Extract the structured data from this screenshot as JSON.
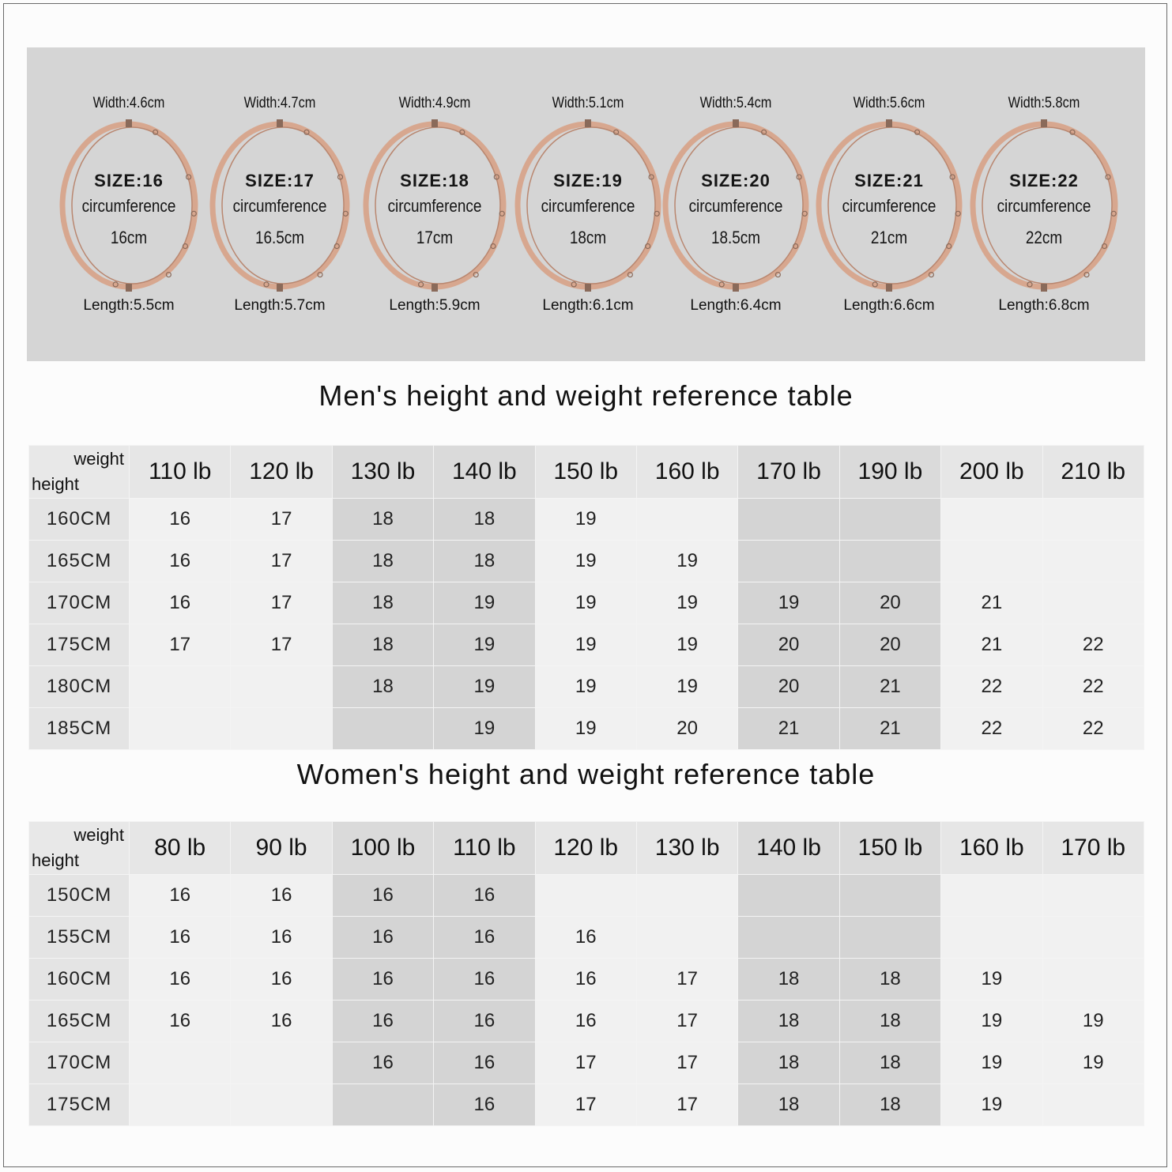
{
  "bangles": [
    {
      "width": "Width:4.6cm",
      "size": "SIZE:16",
      "circ_label": "circumference",
      "circ": "16cm",
      "length": "Length:5.5cm"
    },
    {
      "width": "Width:4.7cm",
      "size": "SIZE:17",
      "circ_label": "circumference",
      "circ": "16.5cm",
      "length": "Length:5.7cm"
    },
    {
      "width": "Width:4.9cm",
      "size": "SIZE:18",
      "circ_label": "circumference",
      "circ": "17cm",
      "length": "Length:5.9cm"
    },
    {
      "width": "Width:5.1cm",
      "size": "SIZE:19",
      "circ_label": "circumference",
      "circ": "18cm",
      "length": "Length:6.1cm"
    },
    {
      "width": "Width:5.4cm",
      "size": "SIZE:20",
      "circ_label": "circumference",
      "circ": "18.5cm",
      "length": "Length:6.4cm"
    },
    {
      "width": "Width:5.6cm",
      "size": "SIZE:21",
      "circ_label": "circumference",
      "circ": "21cm",
      "length": "Length:6.6cm"
    },
    {
      "width": "Width:5.8cm",
      "size": "SIZE:22",
      "circ_label": "circumference",
      "circ": "22cm",
      "length": "Length:6.8cm"
    }
  ],
  "men": {
    "title": "Men's height and weight reference table",
    "corner_weight": "weight",
    "corner_height": "height",
    "weights": [
      "110 lb",
      "120 lb",
      "130 lb",
      "140 lb",
      "150 lb",
      "160 lb",
      "170 lb",
      "190 lb",
      "200 lb",
      "210 lb"
    ],
    "rows": [
      {
        "height": "160CM",
        "values": [
          "16",
          "17",
          "18",
          "18",
          "19",
          "",
          "",
          "",
          "",
          ""
        ]
      },
      {
        "height": "165CM",
        "values": [
          "16",
          "17",
          "18",
          "18",
          "19",
          "19",
          "",
          "",
          "",
          ""
        ]
      },
      {
        "height": "170CM",
        "values": [
          "16",
          "17",
          "18",
          "19",
          "19",
          "19",
          "19",
          "20",
          "21",
          ""
        ]
      },
      {
        "height": "175CM",
        "values": [
          "17",
          "17",
          "18",
          "19",
          "19",
          "19",
          "20",
          "20",
          "21",
          "22"
        ]
      },
      {
        "height": "180CM",
        "values": [
          "",
          "",
          "18",
          "19",
          "19",
          "19",
          "20",
          "21",
          "22",
          "22"
        ]
      },
      {
        "height": "185CM",
        "values": [
          "",
          "",
          "",
          "19",
          "19",
          "20",
          "21",
          "21",
          "22",
          "22"
        ]
      }
    ]
  },
  "women": {
    "title": "Women's height and weight reference table",
    "corner_weight": "weight",
    "corner_height": "height",
    "weights": [
      "80 lb",
      "90 lb",
      "100 lb",
      "110 lb",
      "120 lb",
      "130 lb",
      "140 lb",
      "150 lb",
      "160 lb",
      "170 lb"
    ],
    "rows": [
      {
        "height": "150CM",
        "values": [
          "16",
          "16",
          "16",
          "16",
          "",
          "",
          "",
          "",
          "",
          ""
        ]
      },
      {
        "height": "155CM",
        "values": [
          "16",
          "16",
          "16",
          "16",
          "16",
          "",
          "",
          "",
          "",
          ""
        ]
      },
      {
        "height": "160CM",
        "values": [
          "16",
          "16",
          "16",
          "16",
          "16",
          "17",
          "18",
          "18",
          "19",
          ""
        ]
      },
      {
        "height": "165CM",
        "values": [
          "16",
          "16",
          "16",
          "16",
          "16",
          "17",
          "18",
          "18",
          "19",
          "19"
        ]
      },
      {
        "height": "170CM",
        "values": [
          "",
          "",
          "16",
          "16",
          "17",
          "17",
          "18",
          "18",
          "19",
          "19"
        ]
      },
      {
        "height": "175CM",
        "values": [
          "",
          "",
          "",
          "16",
          "17",
          "17",
          "18",
          "18",
          "19",
          ""
        ]
      }
    ]
  },
  "shaded_columns": [
    2,
    3,
    6,
    7
  ],
  "colors": {
    "bangle_metal": "#d7a78f",
    "panel_bg": "#d5d5d5"
  }
}
